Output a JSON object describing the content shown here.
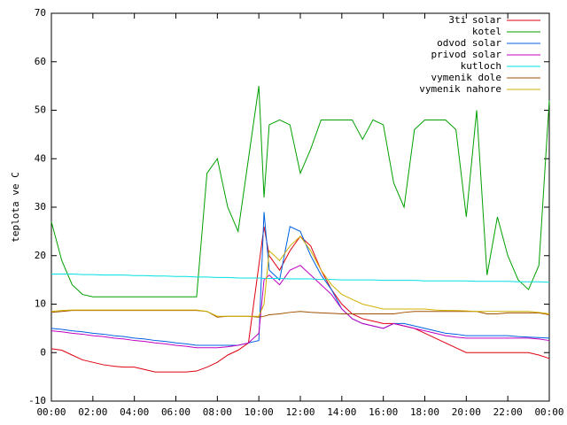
{
  "chart_data": {
    "type": "line",
    "y_label": "teplota ve C",
    "x": [
      0,
      0.5,
      1,
      1.5,
      2,
      2.5,
      3,
      3.5,
      4,
      4.5,
      5,
      5.5,
      6,
      6.5,
      7,
      7.5,
      8,
      8.5,
      9,
      9.5,
      10,
      10.25,
      10.5,
      11,
      11.5,
      12,
      12.5,
      13,
      13.5,
      14,
      14.5,
      15,
      15.5,
      16,
      16.5,
      17,
      17.5,
      18,
      18.5,
      19,
      19.5,
      20,
      20.5,
      21,
      21.5,
      22,
      22.5,
      23,
      23.5,
      24
    ],
    "xlim": [
      0,
      24
    ],
    "xticks": [
      {
        "value": 0,
        "label": "00:00"
      },
      {
        "value": 2,
        "label": "02:00"
      },
      {
        "value": 4,
        "label": "04:00"
      },
      {
        "value": 6,
        "label": "06:00"
      },
      {
        "value": 8,
        "label": "08:00"
      },
      {
        "value": 10,
        "label": "10:00"
      },
      {
        "value": 12,
        "label": "12:00"
      },
      {
        "value": 14,
        "label": "14:00"
      },
      {
        "value": 16,
        "label": "16:00"
      },
      {
        "value": 18,
        "label": "18:00"
      },
      {
        "value": 20,
        "label": "20:00"
      },
      {
        "value": 22,
        "label": "22:00"
      },
      {
        "value": 24,
        "label": "00:00"
      }
    ],
    "ylim": [
      -10,
      70
    ],
    "yticks": [
      -10,
      0,
      10,
      20,
      30,
      40,
      50,
      60,
      70
    ],
    "grid": false,
    "legend": "top-right",
    "series": [
      {
        "name": "3ti solar",
        "color": "#e0000f",
        "values": [
          0.8,
          0.5,
          -0.5,
          -1.5,
          -2,
          -2.5,
          -2.8,
          -3,
          -3,
          -3.5,
          -4,
          -4,
          -4,
          -4,
          -3.8,
          -3,
          -2,
          -0.5,
          0.5,
          2,
          18,
          26,
          20,
          17,
          21,
          24,
          22,
          17,
          13,
          10,
          8,
          7,
          6.5,
          6,
          6,
          5.5,
          5,
          4,
          3,
          2,
          1,
          0,
          0,
          0,
          0,
          0,
          0,
          0,
          -0.5,
          -1.2
        ]
      },
      {
        "name": "kotel",
        "color": "#00a000",
        "values": [
          27,
          19,
          14,
          12,
          11.5,
          11.5,
          11.5,
          11.5,
          11.5,
          11.5,
          11.5,
          11.5,
          11.5,
          11.5,
          11.5,
          37,
          40,
          30,
          25,
          40,
          55,
          32,
          47,
          48,
          47,
          37,
          42,
          48,
          48,
          48,
          48,
          44,
          48,
          47,
          35,
          30,
          46,
          48,
          48,
          48,
          46,
          28,
          50,
          16,
          28,
          20,
          15,
          13,
          18,
          52
        ]
      },
      {
        "name": "odvod solar",
        "color": "#0060e0",
        "values": [
          5,
          4.8,
          4.5,
          4.3,
          4,
          3.8,
          3.5,
          3.3,
          3,
          2.8,
          2.5,
          2.3,
          2,
          1.8,
          1.5,
          1.5,
          1.5,
          1.5,
          1.5,
          2,
          2.5,
          29,
          17,
          15,
          26,
          25,
          20,
          16,
          13,
          9,
          7,
          6,
          5.5,
          5,
          6,
          6,
          5.5,
          5,
          4.5,
          4,
          3.8,
          3.5,
          3.5,
          3.5,
          3.5,
          3.5,
          3.3,
          3.2,
          3.1,
          3
        ]
      },
      {
        "name": "privod solar",
        "color": "#c000c0",
        "values": [
          4.5,
          4.3,
          4,
          3.8,
          3.5,
          3.3,
          3,
          2.8,
          2.5,
          2.3,
          2,
          1.8,
          1.5,
          1.3,
          1,
          1,
          1,
          1.2,
          1.5,
          2,
          4,
          15,
          16,
          14,
          17,
          18,
          16,
          14,
          12,
          9,
          7,
          6,
          5.5,
          5,
          6,
          5.5,
          5,
          4.5,
          4,
          3.5,
          3.2,
          3,
          3,
          3,
          3,
          3,
          3,
          3,
          2.8,
          2.5
        ]
      },
      {
        "name": "kutloch",
        "color": "#00e0e0",
        "values": [
          16.2,
          16.2,
          16.2,
          16.1,
          16.1,
          16,
          16,
          16,
          15.9,
          15.9,
          15.8,
          15.8,
          15.7,
          15.7,
          15.6,
          15.6,
          15.5,
          15.5,
          15.4,
          15.4,
          15.4,
          15.3,
          15.3,
          15.3,
          15.2,
          15.2,
          15.2,
          15.1,
          15.1,
          15,
          15,
          15,
          15,
          14.9,
          14.9,
          14.9,
          14.9,
          14.8,
          14.8,
          14.8,
          14.8,
          14.8,
          14.7,
          14.7,
          14.7,
          14.7,
          14.6,
          14.6,
          14.6,
          14.5
        ]
      },
      {
        "name": "vymenik dole",
        "color": "#a05000",
        "values": [
          8.3,
          8.5,
          8.7,
          8.7,
          8.7,
          8.7,
          8.7,
          8.7,
          8.7,
          8.7,
          8.7,
          8.7,
          8.7,
          8.7,
          8.7,
          8.5,
          7.3,
          7.5,
          7.5,
          7.5,
          7.3,
          7.5,
          7.8,
          8,
          8.3,
          8.5,
          8.3,
          8.2,
          8.1,
          8,
          8,
          8,
          8,
          8,
          8,
          8.3,
          8.5,
          8.5,
          8.5,
          8.5,
          8.5,
          8.5,
          8.5,
          8,
          8,
          8.2,
          8.2,
          8.2,
          8.2,
          7.8
        ]
      },
      {
        "name": "vymenik nahore",
        "color": "#d0b000",
        "values": [
          8.5,
          8.7,
          8.8,
          8.8,
          8.8,
          8.8,
          8.8,
          8.8,
          8.8,
          8.8,
          8.8,
          8.8,
          8.8,
          8.8,
          8.8,
          8.5,
          7.5,
          7.5,
          7.5,
          7.5,
          7.5,
          10,
          21,
          19,
          22,
          24,
          21,
          17,
          14,
          12,
          11,
          10,
          9.5,
          9,
          9,
          9,
          9,
          9,
          8.8,
          8.7,
          8.7,
          8.6,
          8.5,
          8.5,
          8.5,
          8.5,
          8.5,
          8.5,
          8.3,
          8
        ]
      }
    ]
  }
}
